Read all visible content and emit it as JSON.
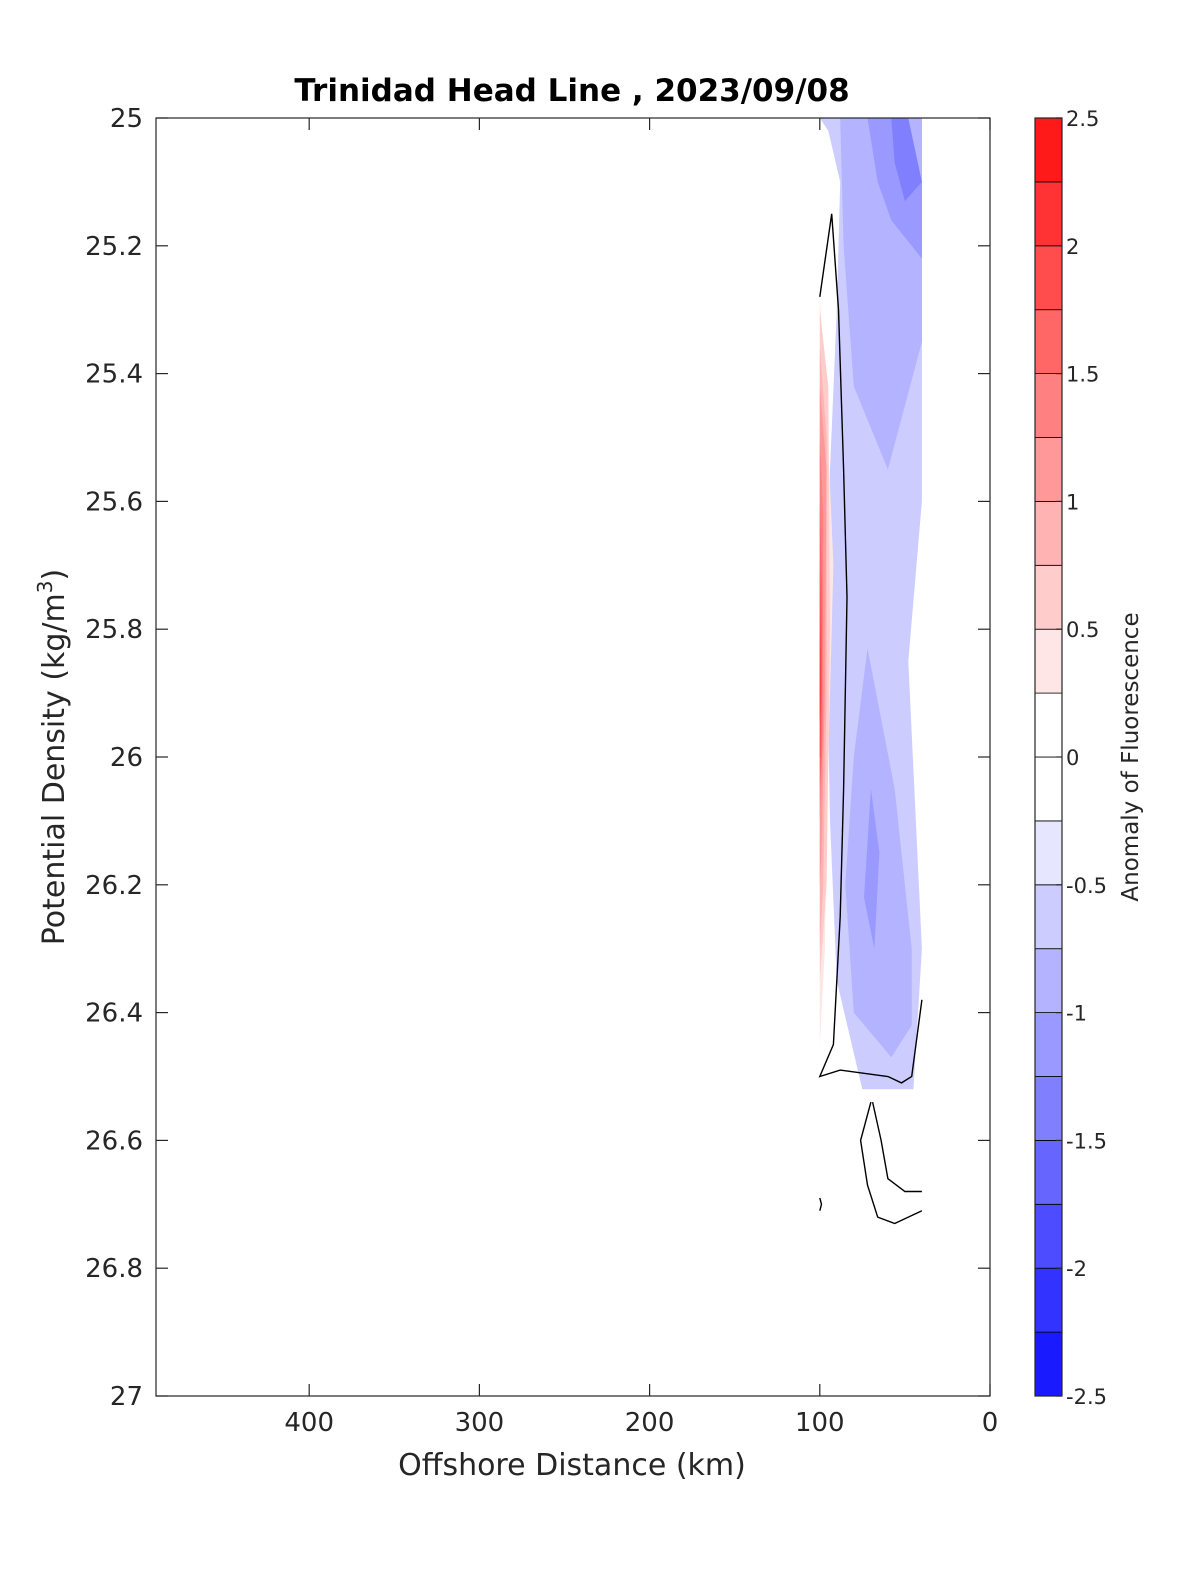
{
  "chart_data": {
    "type": "contourf",
    "title": "Trinidad Head Line , 2023/09/08",
    "xlabel": "Offshore Distance (km)",
    "ylabel_prefix": "Potential Density (kg/m",
    "ylabel_sup": "3",
    "ylabel_suffix": ")",
    "xlim": [
      490,
      0
    ],
    "ylim": [
      25,
      27
    ],
    "x_reversed": true,
    "y_reversed": true,
    "x_ticks": [
      400,
      300,
      200,
      100,
      0
    ],
    "y_ticks": [
      25,
      25.2,
      25.4,
      25.6,
      25.8,
      26,
      26.2,
      26.4,
      26.6,
      26.8,
      27
    ],
    "x_tick_labels": [
      "400",
      "300",
      "200",
      "100",
      "0"
    ],
    "y_tick_labels": [
      "25",
      "25.2",
      "25.4",
      "25.6",
      "25.8",
      "26",
      "26.2",
      "26.4",
      "26.6",
      "26.8",
      "27"
    ],
    "grid": false,
    "colorbar": {
      "label": "Anomaly of Fluorescence",
      "range": [
        -2.5,
        2.5
      ],
      "step": 0.25,
      "ticks": [
        2.5,
        2,
        1.5,
        1,
        0.5,
        0,
        -0.5,
        -1,
        -1.5,
        -2,
        -2.5
      ],
      "tick_labels": [
        "2.5",
        "2",
        "1.5",
        "1",
        "0.5",
        "0",
        "-0.5",
        "-1",
        "-1.5",
        "-2",
        "-2.5"
      ],
      "colors": {
        "max": "#ff0000",
        "zero": "#ffffff",
        "min": "#0000ff"
      }
    },
    "filled_regions": [
      {
        "level": -0.5,
        "points": [
          [
            100,
            25
          ],
          [
            40,
            25
          ],
          [
            40,
            25.6
          ],
          [
            48,
            25.85
          ],
          [
            40,
            26.3
          ],
          [
            45,
            26.52
          ],
          [
            75,
            26.52
          ],
          [
            90,
            26.35
          ],
          [
            94,
            26.1
          ],
          [
            96,
            25.8
          ],
          [
            94,
            25.55
          ],
          [
            90,
            25.3
          ],
          [
            88,
            25.1
          ],
          [
            95,
            25.02
          ]
        ]
      },
      {
        "level": -0.75,
        "points": [
          [
            88,
            25
          ],
          [
            40,
            25
          ],
          [
            40,
            25.35
          ],
          [
            60,
            25.55
          ],
          [
            80,
            25.42
          ],
          [
            86,
            25.2
          ]
        ]
      },
      {
        "level": -0.75,
        "points": [
          [
            72,
            25.83
          ],
          [
            56,
            26.05
          ],
          [
            46,
            26.3
          ],
          [
            46,
            26.42
          ],
          [
            58,
            26.47
          ],
          [
            80,
            26.4
          ],
          [
            85,
            26.2
          ],
          [
            80,
            26
          ]
        ]
      },
      {
        "level": -1,
        "points": [
          [
            72,
            25
          ],
          [
            50,
            25
          ],
          [
            40,
            25.1
          ],
          [
            40,
            25.22
          ],
          [
            58,
            25.16
          ],
          [
            66,
            25.1
          ]
        ]
      },
      {
        "level": -1,
        "points": [
          [
            70,
            26.05
          ],
          [
            65,
            26.15
          ],
          [
            68,
            26.3
          ],
          [
            74,
            26.22
          ]
        ]
      },
      {
        "level": -1.25,
        "points": [
          [
            58,
            25
          ],
          [
            48,
            25
          ],
          [
            40,
            25.1
          ],
          [
            50,
            25.13
          ],
          [
            56,
            25.07
          ]
        ]
      },
      {
        "level": 0.25,
        "points": [
          [
            100,
            25.28
          ],
          [
            96,
            25.45
          ],
          [
            92,
            25.7
          ],
          [
            96,
            26.1
          ],
          [
            97,
            26.3
          ],
          [
            100,
            26.45
          ]
        ]
      },
      {
        "level": 0.5,
        "points": [
          [
            100,
            25.3
          ],
          [
            95,
            25.42
          ],
          [
            94,
            25.8
          ],
          [
            96,
            26.2
          ],
          [
            100,
            26.35
          ]
        ]
      },
      {
        "level": 0.75,
        "points": [
          [
            100,
            25.36
          ],
          [
            96,
            25.5
          ],
          [
            96,
            25.9
          ],
          [
            98,
            26.2
          ],
          [
            100,
            26.3
          ]
        ]
      },
      {
        "level": 1,
        "points": [
          [
            100,
            25.42
          ],
          [
            96,
            25.55
          ],
          [
            97,
            25.9
          ],
          [
            99,
            26.15
          ],
          [
            100,
            26.2
          ]
        ]
      },
      {
        "level": 1.25,
        "points": [
          [
            100,
            25.5
          ],
          [
            98,
            25.62
          ],
          [
            98,
            25.95
          ],
          [
            100,
            26.1
          ]
        ]
      },
      {
        "level": 1.5,
        "points": [
          [
            100,
            25.6
          ],
          [
            98.5,
            25.75
          ],
          [
            99,
            26
          ],
          [
            100,
            26.05
          ]
        ]
      },
      {
        "level": 1.75,
        "points": [
          [
            100,
            25.7
          ],
          [
            99,
            25.85
          ],
          [
            99.5,
            26
          ],
          [
            100,
            26
          ]
        ]
      },
      {
        "level": 2,
        "points": [
          [
            100,
            25.8
          ],
          [
            99.5,
            25.9
          ],
          [
            100,
            25.95
          ]
        ]
      }
    ],
    "zero_contours": [
      {
        "closed": false,
        "points": [
          [
            100,
            25.28
          ],
          [
            93,
            25.15
          ],
          [
            89,
            25.3
          ],
          [
            86,
            25.55
          ],
          [
            84,
            25.75
          ],
          [
            86,
            26.05
          ],
          [
            88,
            26.25
          ],
          [
            92,
            26.45
          ],
          [
            100,
            26.5
          ],
          [
            88,
            26.49
          ],
          [
            60,
            26.5
          ],
          [
            52,
            26.51
          ],
          [
            46,
            26.5
          ],
          [
            40,
            26.38
          ]
        ]
      },
      {
        "closed": false,
        "points": [
          [
            70,
            26.54
          ],
          [
            76,
            26.6
          ],
          [
            72,
            26.67
          ],
          [
            66,
            26.72
          ],
          [
            56,
            26.73
          ],
          [
            40,
            26.71
          ]
        ]
      },
      {
        "closed": false,
        "points": [
          [
            69,
            26.54
          ],
          [
            64,
            26.6
          ],
          [
            60,
            26.66
          ],
          [
            50,
            26.68
          ],
          [
            40,
            26.68
          ]
        ]
      },
      {
        "closed": false,
        "points": [
          [
            100,
            26.69
          ],
          [
            99,
            26.7
          ],
          [
            100,
            26.71
          ]
        ]
      }
    ]
  }
}
